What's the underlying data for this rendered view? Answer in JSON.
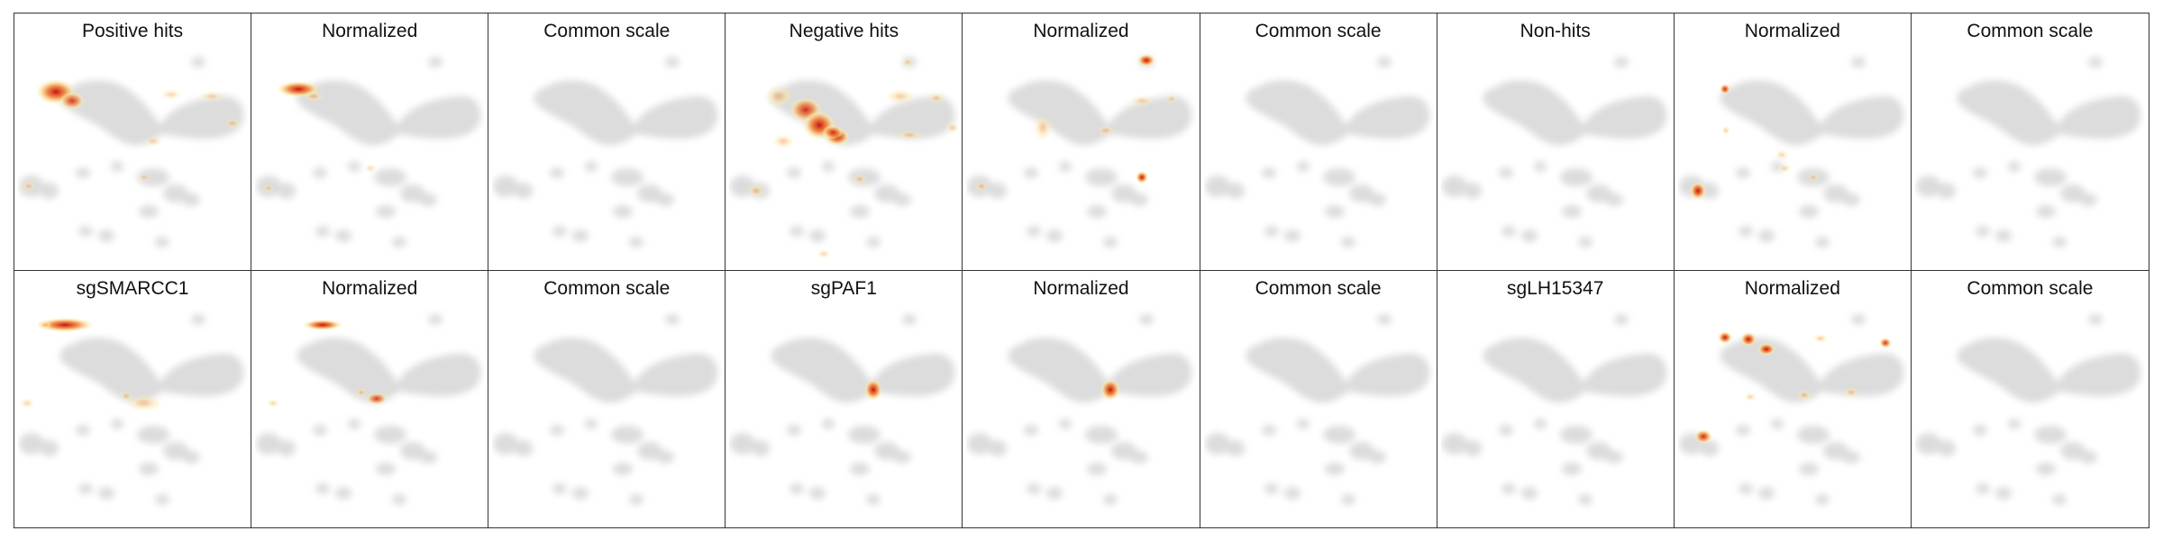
{
  "figure": {
    "panels": [
      {
        "title": "Positive hits"
      },
      {
        "title": "Normalized"
      },
      {
        "title": "Common scale"
      },
      {
        "title": "Negative hits"
      },
      {
        "title": "Normalized"
      },
      {
        "title": "Common scale"
      },
      {
        "title": "Non-hits"
      },
      {
        "title": "Normalized"
      },
      {
        "title": "Common scale"
      },
      {
        "title": "sgSMARCC1"
      },
      {
        "title": "Normalized"
      },
      {
        "title": "Common scale"
      },
      {
        "title": "sgPAF1"
      },
      {
        "title": "Normalized"
      },
      {
        "title": "Common scale"
      },
      {
        "title": "sgLH15347"
      },
      {
        "title": "Normalized"
      },
      {
        "title": "Common scale"
      }
    ],
    "colors": {
      "embedding": "#dcdcdc",
      "density_low": "#fbe7a8",
      "density_mid": "#f07a2a",
      "density_high": "#c41212",
      "border": "#333333"
    }
  }
}
